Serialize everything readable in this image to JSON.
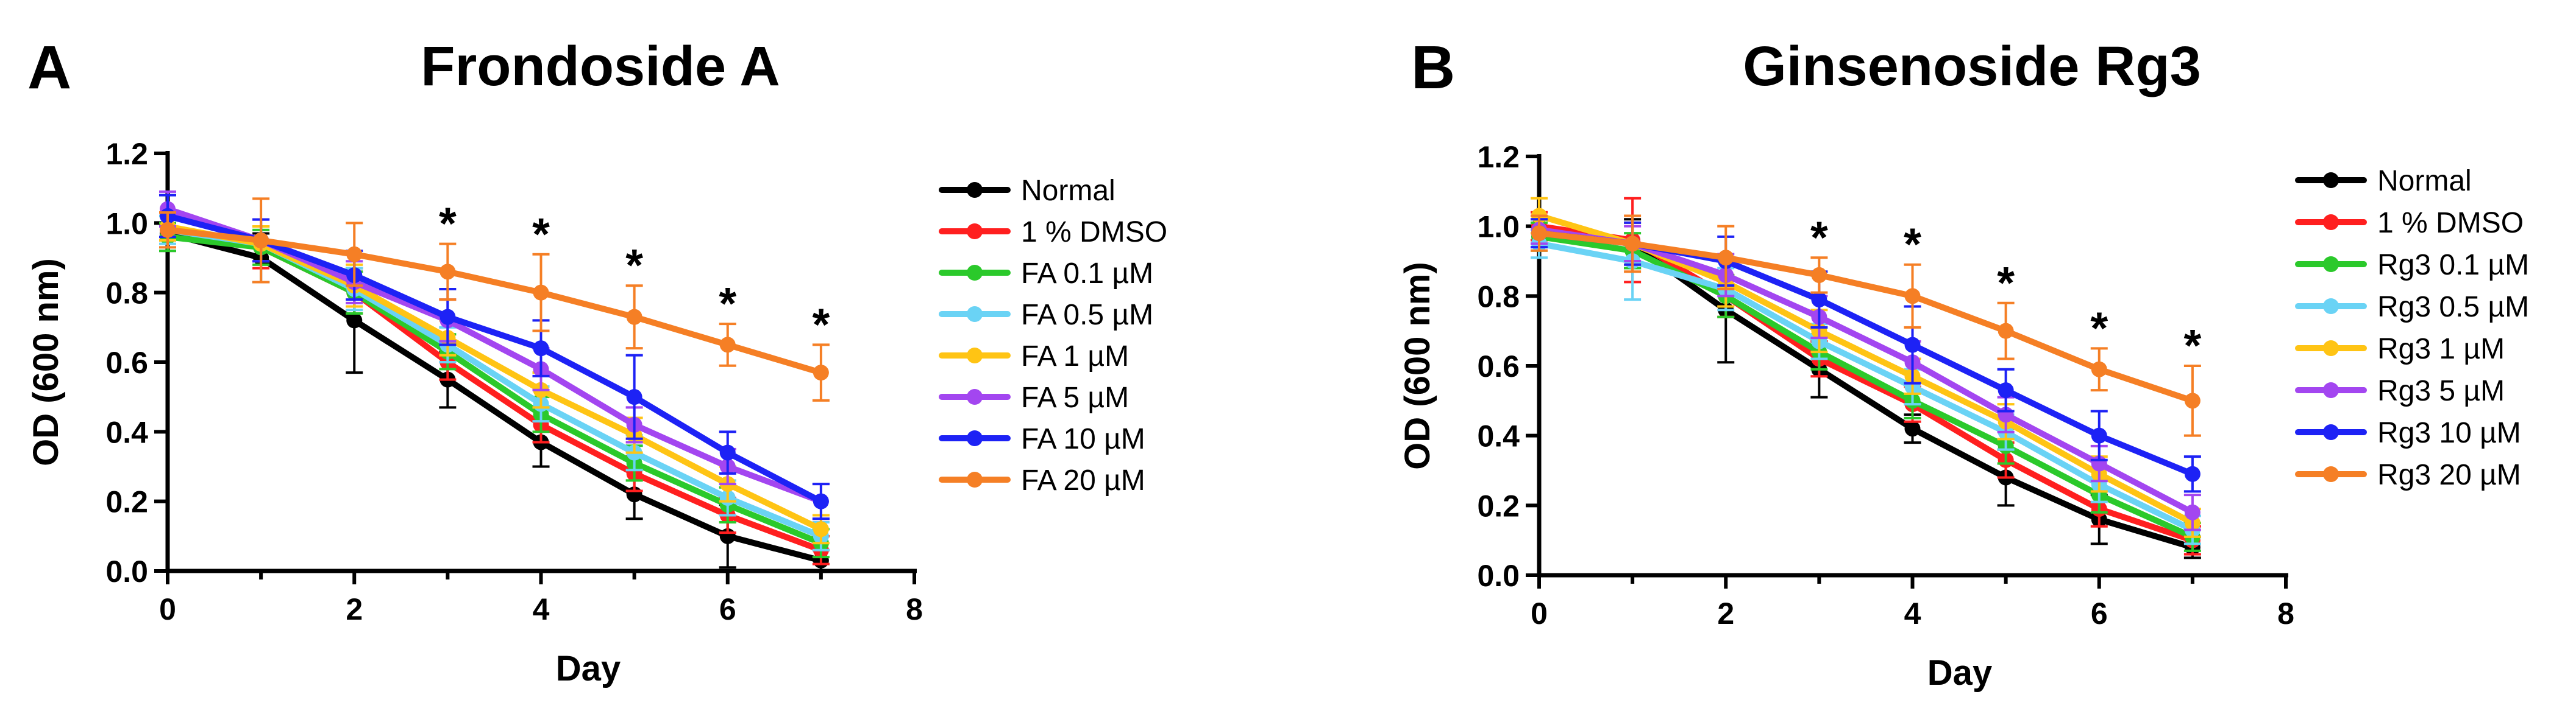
{
  "chart_data": [
    {
      "type": "line",
      "panel_label": "A",
      "title": "Frondoside A",
      "xlabel": "Day",
      "ylabel": "OD (600 nm)",
      "xlim": [
        0,
        8
      ],
      "ylim": [
        0,
        1.2
      ],
      "xticks": [
        "0",
        "2",
        "4",
        "6",
        "8"
      ],
      "yticks": [
        "0.0",
        "0.2",
        "0.4",
        "0.6",
        "0.8",
        "1.0",
        "1.2"
      ],
      "grid": false,
      "legend": "right",
      "x": [
        0,
        1,
        2,
        3,
        4,
        5,
        6,
        7
      ],
      "significance": {
        "marker": "*",
        "days": [
          3,
          4,
          5,
          6,
          7
        ]
      },
      "series": [
        {
          "name": "Normal",
          "color": "#000000",
          "values": [
            0.97,
            0.9,
            0.72,
            0.55,
            0.37,
            0.22,
            0.1,
            0.03
          ],
          "errors": [
            0.05,
            0.07,
            0.15,
            0.08,
            0.07,
            0.07,
            0.09,
            0.03
          ]
        },
        {
          "name": "1 % DMSO",
          "color": "#ff1f1f",
          "values": [
            0.99,
            0.93,
            0.8,
            0.6,
            0.42,
            0.28,
            0.16,
            0.06
          ],
          "errors": [
            0.04,
            0.06,
            0.06,
            0.05,
            0.05,
            0.05,
            0.05,
            0.04
          ]
        },
        {
          "name": "FA 0.1 µM",
          "color": "#2bc92b",
          "values": [
            0.96,
            0.93,
            0.8,
            0.63,
            0.45,
            0.31,
            0.19,
            0.08
          ],
          "errors": [
            0.04,
            0.05,
            0.06,
            0.05,
            0.05,
            0.05,
            0.05,
            0.04
          ]
        },
        {
          "name": "FA 0.5 µM",
          "color": "#6ad3f5",
          "values": [
            0.98,
            0.94,
            0.81,
            0.65,
            0.48,
            0.34,
            0.21,
            0.1
          ],
          "errors": [
            0.04,
            0.05,
            0.06,
            0.05,
            0.05,
            0.05,
            0.05,
            0.04
          ]
        },
        {
          "name": "FA 1 µM",
          "color": "#ffc414",
          "values": [
            0.99,
            0.94,
            0.82,
            0.67,
            0.52,
            0.39,
            0.25,
            0.12
          ],
          "errors": [
            0.04,
            0.05,
            0.06,
            0.05,
            0.05,
            0.05,
            0.05,
            0.04
          ]
        },
        {
          "name": "FA 5 µM",
          "color": "#a346f0",
          "values": [
            1.04,
            0.95,
            0.83,
            0.72,
            0.58,
            0.42,
            0.3,
            0.2
          ],
          "errors": [
            0.05,
            0.06,
            0.06,
            0.06,
            0.06,
            0.05,
            0.05,
            0.05
          ]
        },
        {
          "name": "FA 10 µM",
          "color": "#1d22f5",
          "values": [
            1.02,
            0.95,
            0.85,
            0.73,
            0.64,
            0.5,
            0.34,
            0.2
          ],
          "errors": [
            0.06,
            0.06,
            0.07,
            0.08,
            0.08,
            0.12,
            0.06,
            0.05
          ]
        },
        {
          "name": "FA 20 µM",
          "color": "#f57f25",
          "values": [
            0.98,
            0.95,
            0.91,
            0.86,
            0.8,
            0.73,
            0.65,
            0.57
          ],
          "errors": [
            0.05,
            0.12,
            0.09,
            0.08,
            0.11,
            0.09,
            0.06,
            0.08
          ]
        }
      ]
    },
    {
      "type": "line",
      "panel_label": "B",
      "title": "Ginsenoside Rg3",
      "xlabel": "Day",
      "ylabel": "OD (600 nm)",
      "xlim": [
        0,
        8
      ],
      "ylim": [
        0,
        1.2
      ],
      "xticks": [
        "0",
        "2",
        "4",
        "6",
        "8"
      ],
      "yticks": [
        "0.0",
        "0.2",
        "0.4",
        "0.6",
        "0.8",
        "1.0",
        "1.2"
      ],
      "grid": false,
      "legend": "right",
      "x": [
        0,
        1,
        2,
        3,
        4,
        5,
        6,
        7
      ],
      "significance": {
        "marker": "*",
        "days": [
          3,
          4,
          5,
          6,
          7
        ]
      },
      "series": [
        {
          "name": "Normal",
          "color": "#000000",
          "values": [
            0.99,
            0.95,
            0.76,
            0.59,
            0.42,
            0.28,
            0.16,
            0.08
          ],
          "errors": [
            0.04,
            0.07,
            0.15,
            0.08,
            0.04,
            0.08,
            0.07,
            0.03
          ]
        },
        {
          "name": "1 % DMSO",
          "color": "#ff1f1f",
          "values": [
            1.0,
            0.96,
            0.8,
            0.62,
            0.49,
            0.33,
            0.19,
            0.1
          ],
          "errors": [
            0.04,
            0.12,
            0.06,
            0.05,
            0.05,
            0.05,
            0.05,
            0.04
          ]
        },
        {
          "name": "Rg3 0.1 µM",
          "color": "#2bc92b",
          "values": [
            0.97,
            0.93,
            0.8,
            0.64,
            0.5,
            0.37,
            0.23,
            0.11
          ],
          "errors": [
            0.04,
            0.05,
            0.06,
            0.05,
            0.05,
            0.05,
            0.05,
            0.04
          ]
        },
        {
          "name": "Rg3 0.5 µM",
          "color": "#6ad3f5",
          "values": [
            0.95,
            0.9,
            0.82,
            0.67,
            0.54,
            0.41,
            0.26,
            0.13
          ],
          "errors": [
            0.04,
            0.11,
            0.06,
            0.05,
            0.05,
            0.05,
            0.05,
            0.04
          ]
        },
        {
          "name": "Rg3 1 µM",
          "color": "#ffc414",
          "values": [
            1.03,
            0.95,
            0.84,
            0.7,
            0.57,
            0.44,
            0.29,
            0.15
          ],
          "errors": [
            0.05,
            0.06,
            0.07,
            0.06,
            0.05,
            0.05,
            0.05,
            0.04
          ]
        },
        {
          "name": "Rg3 5 µM",
          "color": "#a346f0",
          "values": [
            0.99,
            0.95,
            0.86,
            0.74,
            0.61,
            0.46,
            0.32,
            0.18
          ],
          "errors": [
            0.04,
            0.05,
            0.06,
            0.06,
            0.06,
            0.05,
            0.05,
            0.05
          ]
        },
        {
          "name": "Rg3 10 µM",
          "color": "#1d22f5",
          "values": [
            0.98,
            0.95,
            0.9,
            0.79,
            0.66,
            0.53,
            0.4,
            0.29
          ],
          "errors": [
            0.04,
            0.06,
            0.07,
            0.08,
            0.11,
            0.06,
            0.07,
            0.05
          ]
        },
        {
          "name": "Rg3 20 µM",
          "color": "#f57f25",
          "values": [
            0.98,
            0.95,
            0.91,
            0.86,
            0.8,
            0.7,
            0.59,
            0.5
          ],
          "errors": [
            0.05,
            0.08,
            0.09,
            0.05,
            0.09,
            0.08,
            0.06,
            0.1
          ]
        }
      ]
    }
  ]
}
